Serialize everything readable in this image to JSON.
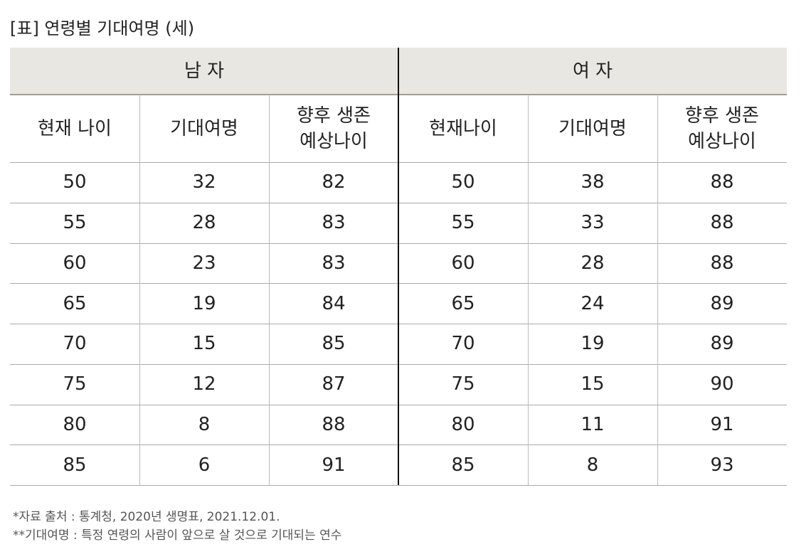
{
  "title": "[표] 연령별 기대여명 (세)",
  "table": {
    "groups": [
      "남 자",
      "여 자"
    ],
    "columns": [
      [
        "현재 나이"
      ],
      [
        "기대여명"
      ],
      [
        "향후 생존",
        "예상나이"
      ],
      [
        "현재나이"
      ],
      [
        "기대여명"
      ],
      [
        "향후 생존",
        "예상나이"
      ]
    ],
    "rows": [
      [
        50,
        32,
        82,
        50,
        38,
        88
      ],
      [
        55,
        28,
        83,
        55,
        33,
        88
      ],
      [
        60,
        23,
        83,
        60,
        28,
        88
      ],
      [
        65,
        19,
        84,
        65,
        24,
        89
      ],
      [
        70,
        15,
        85,
        70,
        19,
        89
      ],
      [
        75,
        12,
        87,
        75,
        15,
        90
      ],
      [
        80,
        8,
        88,
        80,
        11,
        91
      ],
      [
        85,
        6,
        91,
        85,
        8,
        93
      ]
    ]
  },
  "notes": [
    "*자료 출처 : 통계청, 2020년 생명표, 2021.12.01.",
    "**기대여명 : 특정 연령의 사람이 앞으로 살 것으로 기대되는 연수"
  ]
}
